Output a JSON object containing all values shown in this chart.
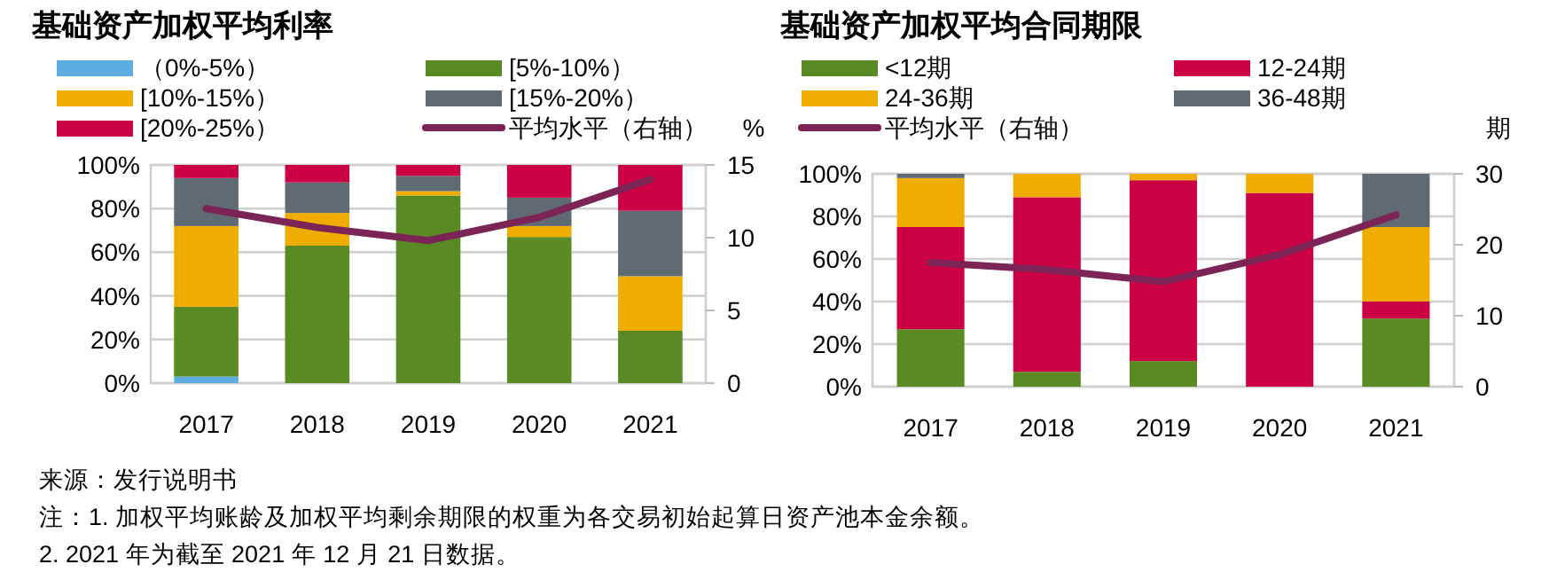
{
  "chart_data": [
    {
      "type": "bar",
      "stacked": true,
      "title": "基础资产加权平均利率",
      "y2label": "%",
      "categories": [
        "2017",
        "2018",
        "2019",
        "2020",
        "2021"
      ],
      "ylim": [
        0,
        100
      ],
      "yticks": [
        {
          "value": 0,
          "label": "0%"
        },
        {
          "value": 20,
          "label": "20%"
        },
        {
          "value": 40,
          "label": "40%"
        },
        {
          "value": 60,
          "label": "60%"
        },
        {
          "value": 80,
          "label": "80%"
        },
        {
          "value": 100,
          "label": "100%"
        }
      ],
      "y2lim": [
        0,
        15
      ],
      "y2ticks": [
        0,
        5,
        10,
        15
      ],
      "grid": "y",
      "legend": "top",
      "series": [
        {
          "name": "（0%-5%）",
          "color": "#5dade2",
          "values": [
            3,
            0,
            0,
            0,
            0
          ]
        },
        {
          "name": "[5%-10%）",
          "color": "#5a8a23",
          "values": [
            32,
            63,
            86,
            67,
            24
          ]
        },
        {
          "name": "[10%-15%）",
          "color": "#f0ad00",
          "values": [
            37,
            15,
            2,
            5,
            25
          ]
        },
        {
          "name": "[15%-20%）",
          "color": "#5f6a72",
          "values": [
            22,
            14,
            7,
            13,
            30
          ]
        },
        {
          "name": "[20%-25%）",
          "color": "#cc0044",
          "values": [
            6,
            8,
            5,
            15,
            21
          ]
        },
        {
          "name": "平均水平（右轴）",
          "type": "line",
          "axis": "y2",
          "color": "#7b2455",
          "values": [
            12.0,
            10.7,
            9.8,
            11.4,
            14.0
          ]
        }
      ],
      "annotations": [
        "来源：发行说明书",
        "注：1. 加权平均账龄及加权平均剩余期限的权重为各交易初始起算日资产池本金余额。",
        "2. 2021 年为截至 2021 年 12 月 21 日数据。"
      ]
    },
    {
      "type": "bar",
      "stacked": true,
      "title": "基础资产加权平均合同期限",
      "y2label": "期",
      "categories": [
        "2017",
        "2018",
        "2019",
        "2020",
        "2021"
      ],
      "ylim": [
        0,
        100
      ],
      "yticks": [
        {
          "value": 0,
          "label": "0%"
        },
        {
          "value": 20,
          "label": "20%"
        },
        {
          "value": 40,
          "label": "40%"
        },
        {
          "value": 60,
          "label": "60%"
        },
        {
          "value": 80,
          "label": "80%"
        },
        {
          "value": 100,
          "label": "100%"
        }
      ],
      "y2lim": [
        0,
        30
      ],
      "y2ticks": [
        0,
        10,
        20,
        30
      ],
      "grid": "y",
      "legend": "top",
      "series": [
        {
          "name": "<12期",
          "color": "#5a8a23",
          "values": [
            27,
            7,
            12,
            0,
            32
          ]
        },
        {
          "name": "12-24期",
          "color": "#cc0044",
          "values": [
            48,
            82,
            85,
            91,
            8
          ]
        },
        {
          "name": "24-36期",
          "color": "#f0ad00",
          "values": [
            23,
            11,
            3,
            9,
            35
          ]
        },
        {
          "name": "36-48期",
          "color": "#5f6a72",
          "values": [
            2,
            0,
            0,
            0,
            25
          ]
        },
        {
          "name": "平均水平（右轴）",
          "type": "line",
          "axis": "y2",
          "color": "#7b2455",
          "values": [
            17.5,
            16.5,
            14.8,
            18.6,
            24.2
          ]
        }
      ]
    }
  ]
}
